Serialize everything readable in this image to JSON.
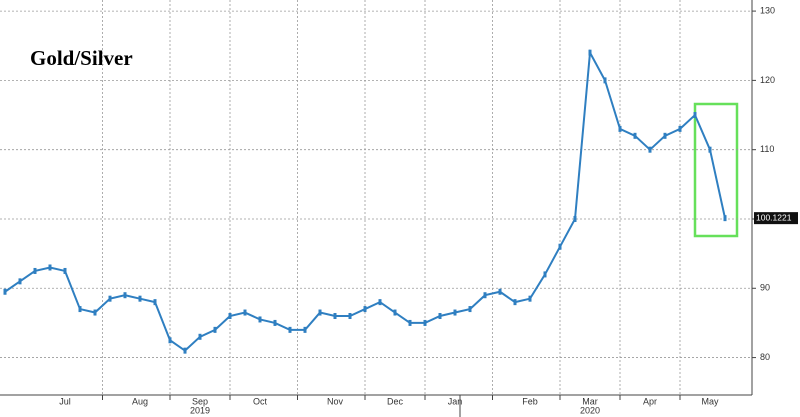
{
  "chart_data": {
    "type": "line",
    "title": "Gold/Silver",
    "categories": [
      null,
      null,
      null,
      null,
      "Jul",
      null,
      null,
      null,
      null,
      "Aug",
      null,
      null,
      null,
      "Sep",
      null,
      null,
      null,
      "Oct",
      null,
      null,
      null,
      null,
      "Nov",
      null,
      null,
      null,
      "Dec",
      null,
      null,
      null,
      "Jan",
      null,
      null,
      null,
      null,
      "Feb",
      null,
      null,
      null,
      "Mar",
      null,
      null,
      null,
      "Apr",
      null,
      null,
      null,
      "May",
      null
    ],
    "x_group_labels": [
      {
        "label": "2019",
        "at": "Sep"
      },
      {
        "label": "2020",
        "at": "Mar"
      }
    ],
    "series": [
      {
        "color": "#2f7fc1",
        "values": [
          89.5,
          91,
          92.5,
          93,
          92.5,
          87,
          86.5,
          88.5,
          89,
          88.5,
          88,
          82.5,
          81,
          83,
          84,
          86,
          86.5,
          85.5,
          85,
          84,
          84,
          86.5,
          86,
          86,
          87,
          88,
          86.5,
          85,
          85,
          86,
          86.5,
          87,
          89,
          89.5,
          88,
          88.5,
          92,
          96,
          100,
          124,
          120,
          113,
          112,
          110,
          112,
          113,
          115,
          110,
          100.1221
        ]
      }
    ],
    "ylim": [
      74.6,
      131.6
    ],
    "yticks": [
      80,
      90,
      100,
      110,
      120,
      130
    ],
    "grid": true
  }
}
